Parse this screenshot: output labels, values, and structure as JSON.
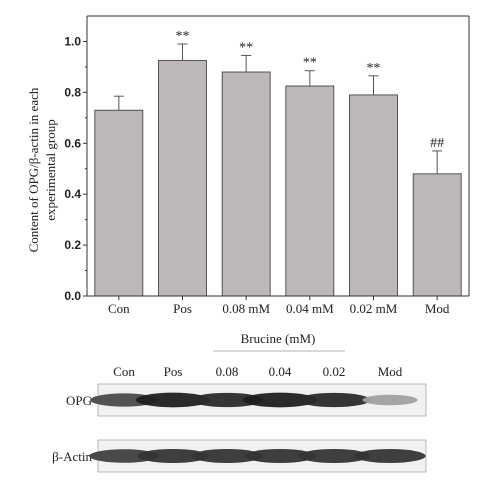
{
  "chart_data": {
    "type": "bar",
    "categories": [
      "Con",
      "Pos",
      "0.08 mM",
      "0.04 mM",
      "0.02 mM",
      "Mod"
    ],
    "values": [
      0.73,
      0.925,
      0.88,
      0.825,
      0.79,
      0.48
    ],
    "errors": [
      0.055,
      0.065,
      0.065,
      0.06,
      0.075,
      0.09
    ],
    "annotations": [
      "",
      "**",
      "**",
      "**",
      "**",
      "##"
    ],
    "ylabel_line1": "Content of OPG/β-actin in each",
    "ylabel_line2": "experimental group",
    "ylim": [
      0,
      1.1
    ],
    "yticks": [
      "0.0",
      "0.2",
      "0.4",
      "0.6",
      "0.8",
      "1.0"
    ],
    "group_label": "Brucine (mM)",
    "bar_color": "#bdb7b8"
  },
  "blot": {
    "lane_labels": [
      "Con",
      "Pos",
      "0.08",
      "0.04",
      "0.02",
      "Mod"
    ],
    "rows": [
      {
        "label": "OPG",
        "intensity": [
          0.75,
          0.95,
          0.9,
          0.95,
          0.9,
          0.35
        ]
      },
      {
        "label": "β-Actin",
        "intensity": [
          0.8,
          0.85,
          0.85,
          0.85,
          0.85,
          0.85
        ]
      }
    ]
  }
}
